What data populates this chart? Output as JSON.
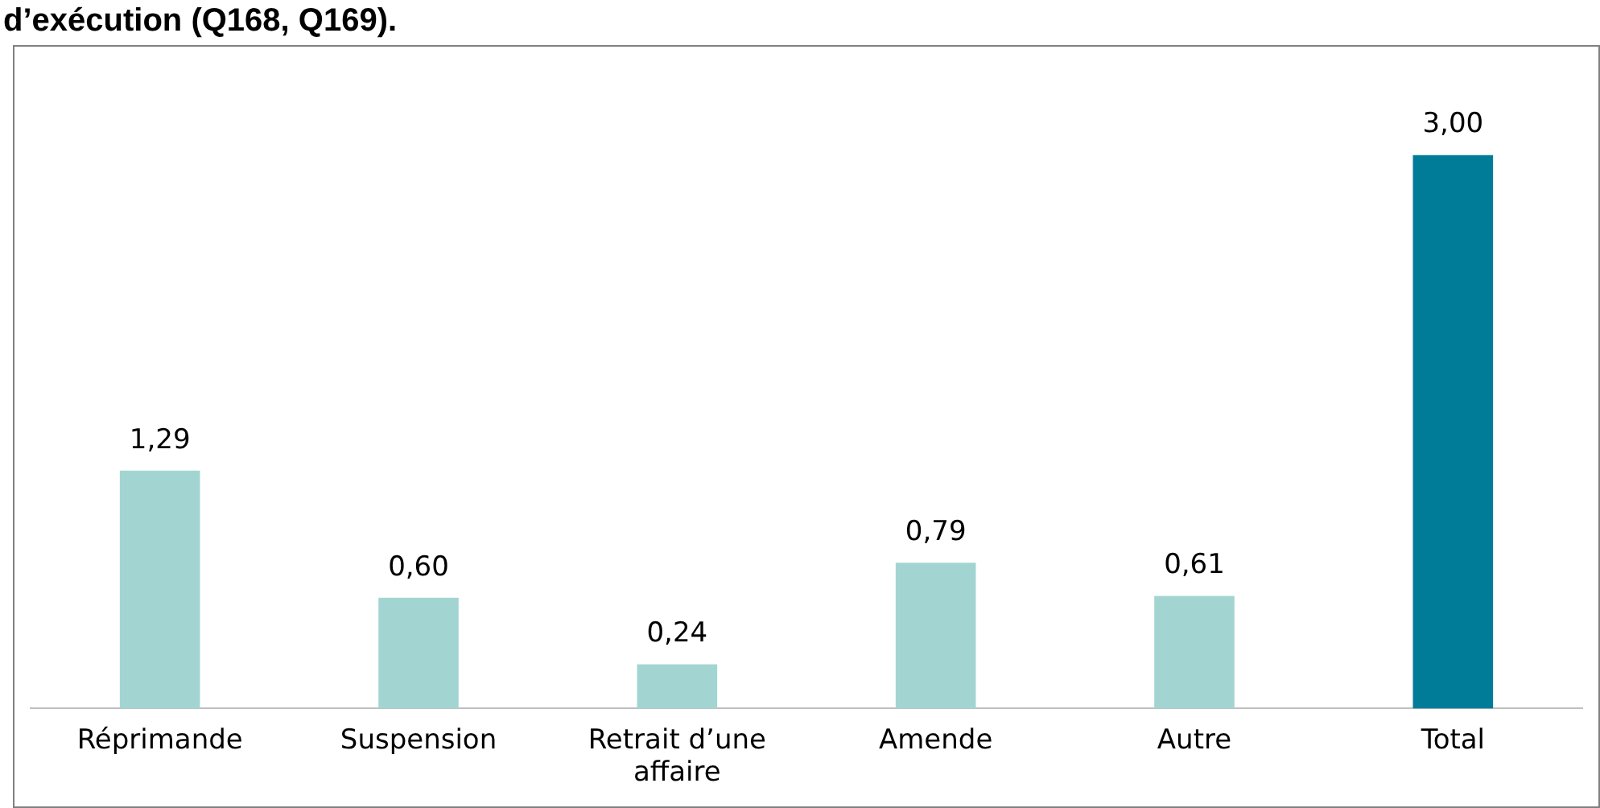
{
  "chart_data": {
    "type": "bar",
    "title": "d’exécution (Q168, Q169).",
    "categories": [
      "Réprimande",
      "Suspension",
      "Retrait d’une affaire",
      "Amende",
      "Autre",
      "Total"
    ],
    "values": [
      1.29,
      0.6,
      0.24,
      0.79,
      0.61,
      3.0
    ],
    "colors": [
      "#a2d5d2",
      "#a2d5d2",
      "#a2d5d2",
      "#a2d5d2",
      "#a2d5d2",
      "#007c99"
    ],
    "value_labels": [
      "1,29",
      "0,60",
      "0,24",
      "0,79",
      "0,61",
      "3,00"
    ],
    "legend": false
  }
}
